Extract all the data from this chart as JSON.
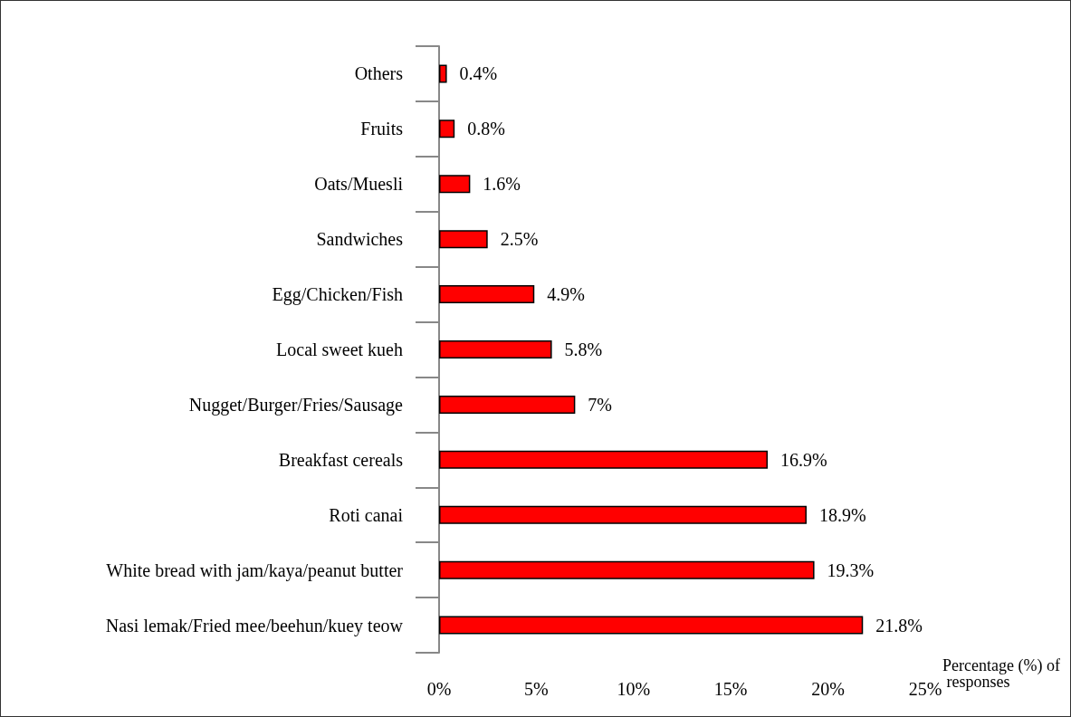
{
  "chart_data": {
    "type": "bar",
    "orientation": "horizontal",
    "categories": [
      "Others",
      "Fruits",
      "Oats/Muesli",
      "Sandwiches",
      "Egg/Chicken/Fish",
      "Local sweet kueh",
      "Nugget/Burger/Fries/Sausage",
      "Breakfast cereals",
      "Roti canai",
      "White bread with jam/kaya/peanut butter",
      "Nasi lemak/Fried mee/beehun/kuey teow"
    ],
    "values": [
      0.4,
      0.8,
      1.6,
      2.5,
      4.9,
      5.8,
      7,
      16.9,
      18.9,
      19.3,
      21.8
    ],
    "value_labels": [
      "0.4%",
      "0.8%",
      "1.6%",
      "2.5%",
      "4.9%",
      "5.8%",
      "7%",
      "16.9%",
      "18.9%",
      "19.3%",
      "21.8%"
    ],
    "color": "#ff0000",
    "xlabel": "Percentage (%) of responses",
    "xlim": [
      0,
      25
    ],
    "xticks": [
      {
        "value": 0,
        "label": "0%"
      },
      {
        "value": 5,
        "label": "5%"
      },
      {
        "value": 10,
        "label": "10%"
      },
      {
        "value": 15,
        "label": "15%"
      },
      {
        "value": 20,
        "label": "20%"
      },
      {
        "value": 25,
        "label": "25%"
      }
    ],
    "grid": false
  }
}
